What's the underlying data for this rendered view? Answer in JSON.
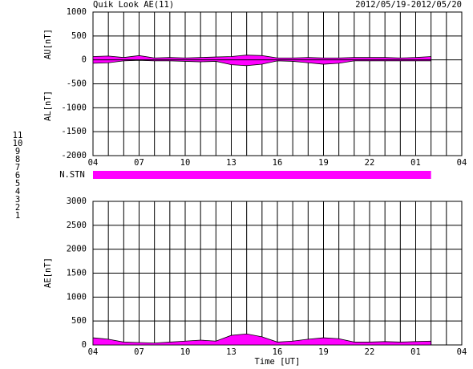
{
  "header": {
    "title": "Quik Look AE(11)",
    "date_range": "2012/05/19-2012/05/20"
  },
  "station_legend": [
    {
      "label": "11",
      "color": "#00d8d8"
    },
    {
      "label": "10",
      "color": "#ff00ff"
    },
    {
      "label": "9",
      "color": "#0000c0"
    },
    {
      "label": "8",
      "color": "#e8e060"
    },
    {
      "label": "7",
      "color": "#a0d040"
    },
    {
      "label": "6",
      "color": "#e00000"
    },
    {
      "label": "5",
      "color": "#c8c8c8"
    },
    {
      "label": "4",
      "color": "#909090"
    },
    {
      "label": "3",
      "color": "#008080"
    },
    {
      "label": "2",
      "color": "#a000a0"
    },
    {
      "label": "1",
      "color": "#0000ff"
    }
  ],
  "station_bar": {
    "label": "N.STN",
    "color": "#ff00ff",
    "x": [
      4,
      26
    ]
  },
  "chart_data": [
    {
      "type": "area",
      "ylabels": [
        "AU[nT]",
        "AL[nT]"
      ],
      "x": [
        4,
        5,
        6,
        7,
        8,
        9,
        10,
        11,
        12,
        13,
        14,
        15,
        16,
        17,
        18,
        19,
        20,
        21,
        22,
        23,
        24,
        25,
        26
      ],
      "series": [
        {
          "color": "#ff00ff",
          "values": [
            70,
            80,
            50,
            90,
            40,
            50,
            40,
            50,
            60,
            70,
            100,
            90,
            40,
            40,
            50,
            40,
            40,
            50,
            50,
            50,
            40,
            50,
            70
          ]
        },
        {
          "color": "#ff00ff",
          "values": [
            -70,
            -60,
            -20,
            -10,
            -20,
            -20,
            -30,
            -40,
            -30,
            -100,
            -120,
            -90,
            -20,
            -30,
            -60,
            -90,
            -70,
            -20,
            -20,
            -20,
            -20,
            -20,
            -20
          ]
        }
      ],
      "xlim": [
        4,
        28
      ],
      "xticks": [
        {
          "value": 4,
          "label": "04"
        },
        {
          "value": 7,
          "label": "07"
        },
        10,
        13,
        16,
        19,
        22,
        {
          "value": 25,
          "label": "01"
        },
        {
          "value": 28,
          "label": "04"
        }
      ],
      "ylim": [
        -2000,
        1000
      ],
      "yticks": [
        -2000,
        -1500,
        -1000,
        -500,
        0,
        500,
        1000
      ],
      "grid": true
    },
    {
      "type": "area",
      "ylabel": "AE[nT]",
      "xlabel": "Time [UT]",
      "x": [
        4,
        5,
        6,
        7,
        8,
        9,
        10,
        11,
        12,
        13,
        14,
        15,
        16,
        17,
        18,
        19,
        20,
        21,
        22,
        23,
        24,
        25,
        26
      ],
      "series": [
        {
          "color": "#ff00ff",
          "values": [
            150,
            120,
            60,
            50,
            40,
            60,
            80,
            100,
            80,
            200,
            230,
            170,
            60,
            80,
            120,
            150,
            130,
            60,
            60,
            70,
            60,
            70,
            80
          ]
        }
      ],
      "xlim": [
        4,
        28
      ],
      "xticks": [
        {
          "value": 4,
          "label": "04"
        },
        {
          "value": 7,
          "label": "07"
        },
        10,
        13,
        16,
        19,
        22,
        {
          "value": 25,
          "label": "01"
        },
        {
          "value": 28,
          "label": "04"
        }
      ],
      "ylim": [
        0,
        3000
      ],
      "yticks": [
        0,
        500,
        1000,
        1500,
        2000,
        2500,
        3000
      ],
      "grid": true
    }
  ]
}
